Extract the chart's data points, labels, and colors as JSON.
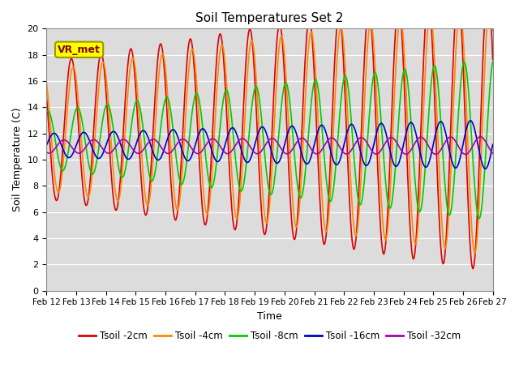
{
  "title": "Soil Temperatures Set 2",
  "xlabel": "Time",
  "ylabel": "Soil Temperature (C)",
  "ylim": [
    0,
    20
  ],
  "xlim": [
    0,
    360
  ],
  "bg_color": "#dcdcdc",
  "series": [
    {
      "label": "Tsoil -2cm",
      "color": "#dd0000",
      "amplitude": 5.2,
      "mean": 12.2,
      "phase_hr": 14.0,
      "lag_hr": 0.0,
      "amp_growth": 0.003,
      "mean_growth": 0.003
    },
    {
      "label": "Tsoil -4cm",
      "color": "#ff8800",
      "amplitude": 4.6,
      "mean": 12.2,
      "phase_hr": 14.0,
      "lag_hr": 1.5,
      "amp_growth": 0.003,
      "mean_growth": 0.003
    },
    {
      "label": "Tsoil -8cm",
      "color": "#00cc00",
      "amplitude": 2.2,
      "mean": 11.5,
      "phase_hr": 14.0,
      "lag_hr": 5.0,
      "amp_growth": 0.005,
      "mean_growth": 0.003
    },
    {
      "label": "Tsoil -16cm",
      "color": "#0000cc",
      "amplitude": 0.9,
      "mean": 11.1,
      "phase_hr": 14.0,
      "lag_hr": 10.0,
      "amp_growth": 0.003,
      "mean_growth": 0.004
    },
    {
      "label": "Tsoil -32cm",
      "color": "#aa00aa",
      "amplitude": 0.5,
      "mean": 11.0,
      "phase_hr": 14.0,
      "lag_hr": 18.0,
      "amp_growth": 0.001,
      "mean_growth": 0.005
    }
  ],
  "xtick_labels": [
    "Feb 12",
    "Feb 13",
    "Feb 14",
    "Feb 15",
    "Feb 16",
    "Feb 17",
    "Feb 18",
    "Feb 19",
    "Feb 20",
    "Feb 21",
    "Feb 22",
    "Feb 23",
    "Feb 24",
    "Feb 25",
    "Feb 26",
    "Feb 27"
  ],
  "xtick_positions": [
    0,
    24,
    48,
    72,
    96,
    120,
    144,
    168,
    192,
    216,
    240,
    264,
    288,
    312,
    336,
    360
  ],
  "ytick_labels": [
    "0",
    "2",
    "4",
    "6",
    "8",
    "10",
    "12",
    "14",
    "16",
    "18",
    "20"
  ],
  "ytick_positions": [
    0,
    2,
    4,
    6,
    8,
    10,
    12,
    14,
    16,
    18,
    20
  ],
  "label_box_text": "VR_met",
  "label_box_facecolor": "#ffff00",
  "label_box_edgecolor": "#999900"
}
